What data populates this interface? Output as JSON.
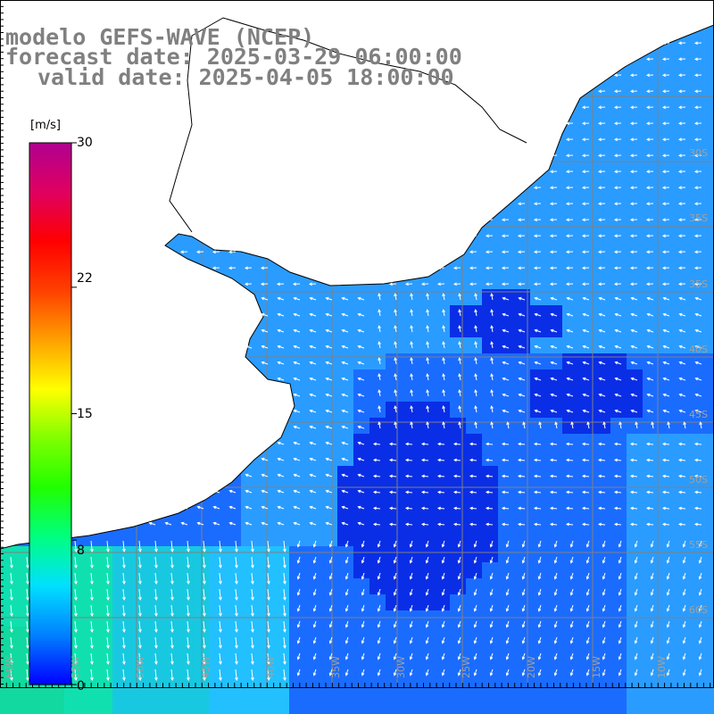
{
  "title": {
    "model": "modelo GEFS-WAVE (NCEP)",
    "forecast": "forecast date: 2025-03-29 06:00:00",
    "valid": "valid date: 2025-04-05 18:00:00"
  },
  "colorbar": {
    "unit": "[m/s]",
    "ticks": [
      "30",
      "22",
      "15",
      "8",
      "0"
    ],
    "tick_values": [
      30,
      22,
      15,
      8,
      0
    ],
    "colors": [
      "#0000ff",
      "#0080ff",
      "#00e0ff",
      "#00ff80",
      "#20ff00",
      "#80ff00",
      "#ffff00",
      "#ffa000",
      "#ff4000",
      "#ff0000",
      "#e00060",
      "#b00090"
    ]
  },
  "field_colors": {
    "deep": "#0a2ee6",
    "mid": "#1a6cff",
    "light": "#2a9cff",
    "coastal": "#22c0ff",
    "south": "#10e0b0",
    "land": "#ffffff",
    "coast_line": "#000000",
    "grid": "#808080",
    "arrow": "#ffffff"
  },
  "map_labels": {
    "lon": [
      "60W",
      "55W",
      "50W",
      "45W",
      "40W",
      "35W",
      "30W",
      "25W",
      "20W",
      "15W",
      "10W"
    ],
    "lat_right": [
      "30S",
      "35S",
      "35S",
      "40S",
      "45S",
      "50S",
      "55S",
      "60S"
    ]
  },
  "map_extent": {
    "lon_min": -60,
    "lon_max": -10,
    "lat_min": -60,
    "lat_max": -20
  }
}
